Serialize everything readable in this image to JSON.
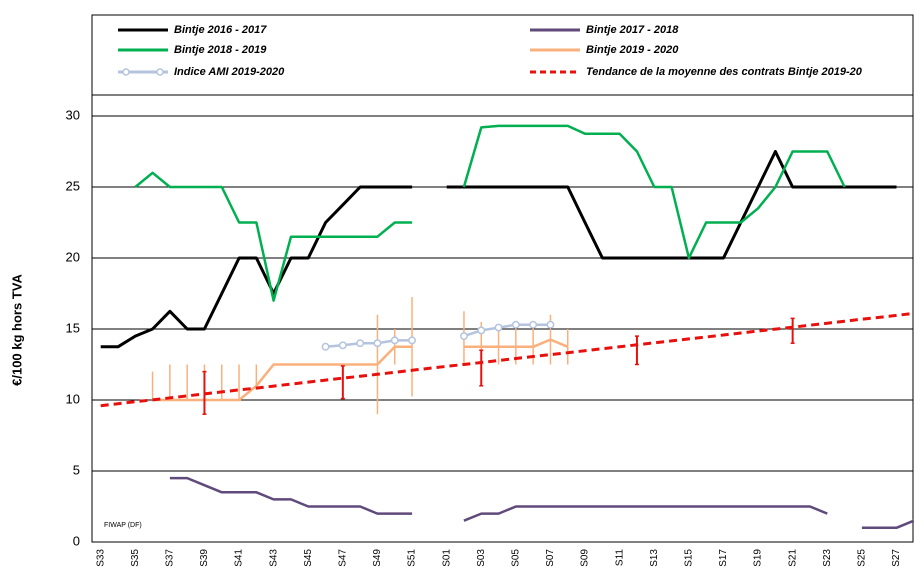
{
  "chart_data": {
    "type": "line",
    "ylabel": "€/100 kg hors TVA",
    "source": "FIWAP (DF)",
    "categories": [
      "S33",
      null,
      "S35",
      null,
      "S37",
      null,
      "S39",
      null,
      "S41",
      null,
      "S43",
      null,
      "S45",
      null,
      "S47",
      null,
      "S49",
      null,
      "S51",
      null,
      "S01",
      null,
      "S03",
      null,
      "S05",
      null,
      "S07",
      null,
      "S09",
      null,
      "S11",
      null,
      "S13",
      null,
      "S15",
      null,
      "S17",
      null,
      "S19",
      null,
      "S21",
      null,
      "S23",
      null,
      "S25",
      null,
      "S27",
      null
    ],
    "ylim": [
      0,
      30
    ],
    "yticks": [
      0,
      5,
      10,
      15,
      20,
      25,
      30
    ],
    "grid": true,
    "series": [
      {
        "name": "Bintje 2016 - 2017",
        "color": "#000000",
        "values": [
          13.75,
          13.75,
          14.5,
          15,
          16.25,
          15,
          15,
          17.5,
          20,
          20,
          17.5,
          20,
          20,
          22.5,
          23.75,
          25,
          25,
          25,
          25,
          null,
          25,
          25,
          25,
          25,
          25,
          25,
          25,
          25,
          22.5,
          20,
          20,
          20,
          20,
          20,
          20,
          20,
          20,
          22.5,
          25,
          27.5,
          25,
          25,
          25,
          25,
          25,
          25,
          25,
          null
        ]
      },
      {
        "name": "Bintje 2017 - 2018",
        "color": "#604a7b",
        "values": [
          null,
          null,
          null,
          null,
          4.5,
          4.5,
          4,
          3.5,
          3.5,
          3.5,
          3,
          3,
          2.5,
          2.5,
          2.5,
          2.5,
          2,
          2,
          2,
          null,
          null,
          1.5,
          2,
          2,
          2.5,
          2.5,
          2.5,
          2.5,
          2.5,
          2.5,
          2.5,
          2.5,
          2.5,
          2.5,
          2.5,
          2.5,
          2.5,
          2.5,
          2.5,
          2.5,
          2.5,
          2.5,
          2,
          null,
          1,
          1,
          1,
          1.5
        ]
      },
      {
        "name": "Bintje 2018 - 2019",
        "color": "#00b050",
        "values": [
          null,
          null,
          25,
          26,
          25,
          25,
          25,
          25,
          22.5,
          22.5,
          17,
          21.5,
          21.5,
          21.5,
          21.5,
          21.5,
          21.5,
          22.5,
          22.5,
          null,
          null,
          25,
          29.2,
          29.3,
          29.3,
          29.3,
          29.3,
          29.3,
          28.75,
          28.75,
          28.75,
          27.5,
          25,
          25,
          20,
          22.5,
          22.5,
          22.5,
          23.5,
          25,
          27.5,
          27.5,
          27.5,
          25,
          null,
          null,
          null,
          null
        ]
      },
      {
        "name": "Bintje 2019 - 2020",
        "color": "#fab07c",
        "values": [
          null,
          null,
          null,
          10,
          10,
          10,
          10,
          10,
          10,
          11,
          12.5,
          12.5,
          12.5,
          12.5,
          12.5,
          12.5,
          12.5,
          13.75,
          13.75,
          null,
          null,
          13.75,
          13.75,
          13.75,
          13.75,
          13.75,
          14.25,
          13.75,
          null,
          null,
          null,
          null,
          null,
          null,
          null,
          null,
          null,
          null,
          null,
          null,
          null,
          null,
          null,
          null,
          null,
          null,
          null,
          null
        ],
        "errors_minus": [
          null,
          null,
          null,
          0,
          0,
          0,
          0,
          0,
          0,
          0,
          null,
          null,
          null,
          null,
          null,
          null,
          3.5,
          1.25,
          3.5,
          null,
          null,
          1.25,
          1.25,
          1.25,
          1.25,
          1.25,
          1.75,
          1.25,
          null,
          null,
          null,
          null,
          null,
          null,
          null,
          null,
          null,
          null,
          null,
          null,
          null,
          null,
          null,
          null,
          null,
          null,
          null,
          null
        ],
        "errors_plus": [
          null,
          null,
          null,
          2,
          2.5,
          2.5,
          2.5,
          2.5,
          2.5,
          1.5,
          null,
          null,
          null,
          null,
          null,
          null,
          3.5,
          1.25,
          3.5,
          null,
          null,
          2.5,
          1.75,
          1.5,
          1.5,
          1.75,
          1.75,
          1.25,
          null,
          null,
          null,
          null,
          null,
          null,
          null,
          null,
          null,
          null,
          null,
          null,
          null,
          null,
          null,
          null,
          null,
          null,
          null,
          null
        ]
      },
      {
        "name": "Indice AMI 2019-2020",
        "color": "#b4c3de",
        "marker": "circle",
        "values": [
          null,
          null,
          null,
          null,
          null,
          null,
          null,
          null,
          null,
          null,
          null,
          null,
          null,
          13.75,
          13.85,
          14,
          14,
          14.2,
          14.2,
          null,
          null,
          14.5,
          14.9,
          15.1,
          15.3,
          15.3,
          15.3,
          null,
          null,
          null,
          null,
          null,
          null,
          null,
          null,
          null,
          null,
          null,
          null,
          null,
          null,
          null,
          null,
          null,
          null,
          null,
          null,
          null
        ]
      },
      {
        "name": "Tendance de la moyenne des contrats Bintje 2019-20",
        "color": "#e8100c",
        "dash": true,
        "values": [
          9.6,
          9.74,
          9.88,
          10.01,
          10.15,
          10.29,
          10.43,
          10.57,
          10.71,
          10.84,
          10.98,
          11.12,
          11.26,
          11.4,
          11.54,
          11.67,
          11.81,
          11.95,
          12.09,
          12.23,
          12.37,
          12.5,
          12.64,
          12.78,
          12.92,
          13.06,
          13.2,
          13.33,
          13.47,
          13.61,
          13.75,
          13.89,
          14.03,
          14.16,
          14.3,
          14.44,
          14.58,
          14.72,
          14.86,
          14.99,
          15.13,
          15.27,
          15.41,
          15.55,
          15.69,
          15.82,
          15.96,
          16.1
        ]
      }
    ],
    "ranges": {
      "color": "#e8100c",
      "low": [
        null,
        null,
        null,
        null,
        null,
        null,
        9,
        null,
        null,
        null,
        null,
        null,
        null,
        null,
        10.1,
        null,
        null,
        null,
        null,
        null,
        null,
        null,
        11,
        null,
        null,
        null,
        null,
        null,
        null,
        null,
        null,
        12.5,
        null,
        null,
        null,
        null,
        null,
        null,
        null,
        null,
        14,
        null,
        null,
        null,
        null,
        null,
        null,
        null
      ],
      "high": [
        null,
        null,
        null,
        null,
        null,
        null,
        12,
        null,
        null,
        null,
        null,
        null,
        null,
        null,
        12.4,
        null,
        null,
        null,
        null,
        null,
        null,
        null,
        13.5,
        null,
        null,
        null,
        null,
        null,
        null,
        null,
        null,
        14.5,
        null,
        null,
        null,
        null,
        null,
        null,
        null,
        null,
        15.75,
        null,
        null,
        null,
        null,
        null,
        null,
        null
      ]
    }
  }
}
